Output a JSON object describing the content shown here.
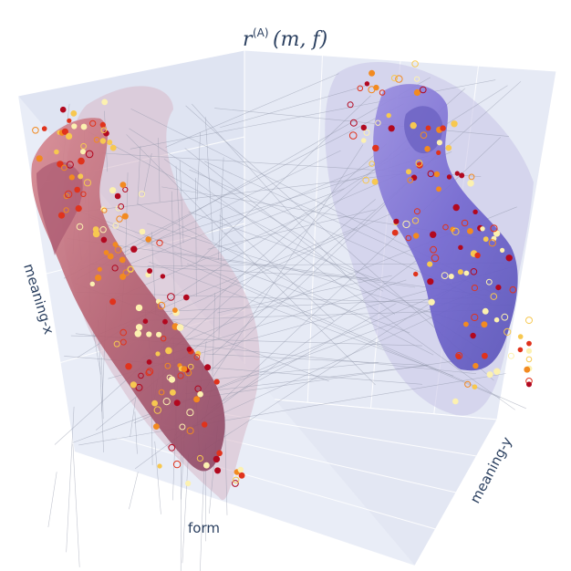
{
  "chart_data": {
    "type": "scatter",
    "subtype": "3d-surface-scatter",
    "title": {
      "prefix": "r",
      "superscript": "(A)",
      "args": "(m, f)"
    },
    "axes": {
      "x_label": "form",
      "y_label": "meaning-y",
      "z_label": "meaning-x"
    },
    "grid": true,
    "background": "#e8ecf6",
    "surfaces": [
      {
        "name": "",
        "color": "#c4707e",
        "opacity": 0.85
      },
      {
        "name": "",
        "color": "#7b74d6",
        "opacity": 0.85
      }
    ],
    "marker_colors": [
      "#fcf1b0",
      "#f7c850",
      "#f28a20",
      "#e0331c",
      "#b2081f"
    ],
    "connector_color": "#8f95a8"
  }
}
